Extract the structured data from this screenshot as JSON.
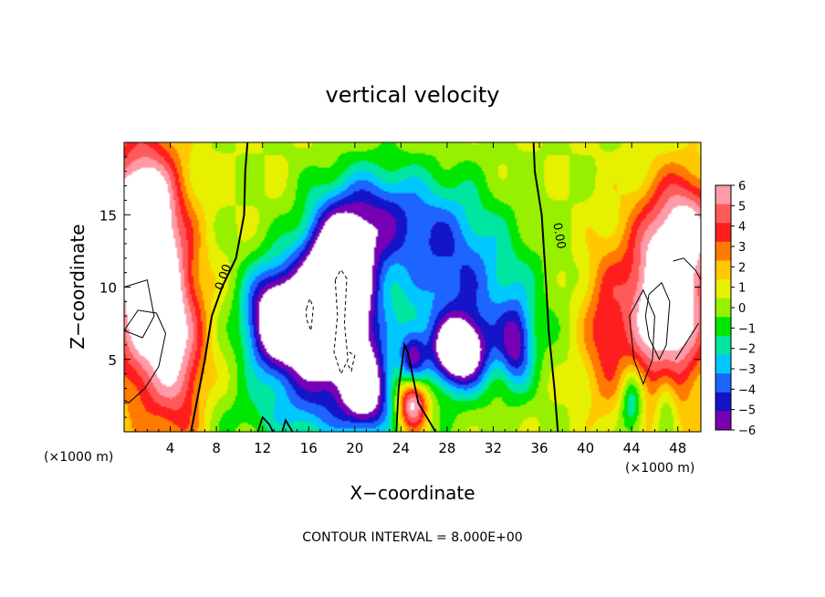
{
  "chart_data": {
    "type": "heatmap",
    "title": "vertical velocity",
    "xlabel": "X−coordinate",
    "ylabel": "Z−coordinate",
    "x_unit": "(×1000 m)",
    "x_unit_right": "(×1000 m)",
    "xlim": [
      0,
      50
    ],
    "ylim": [
      0,
      20
    ],
    "x_ticks": [
      "4",
      "8",
      "12",
      "16",
      "20",
      "24",
      "28",
      "32",
      "36",
      "40",
      "44",
      "48"
    ],
    "x_tick_values": [
      4,
      8,
      12,
      16,
      20,
      24,
      28,
      32,
      36,
      40,
      44,
      48
    ],
    "y_ticks": [
      "5",
      "10",
      "15"
    ],
    "y_tick_values": [
      5,
      10,
      15
    ],
    "colorbar": {
      "labels": [
        "6",
        "5",
        "4",
        "3",
        "2",
        "1",
        "0",
        "−1",
        "−2",
        "−3",
        "−4",
        "−5",
        "−6"
      ],
      "values": [
        6,
        5,
        4,
        3,
        2,
        1,
        0,
        -1,
        -2,
        -3,
        -4,
        -5,
        -6
      ],
      "colors": [
        "#ff9aa8",
        "#ff5a5a",
        "#ff1e1e",
        "#ff7a00",
        "#ffc800",
        "#e6f000",
        "#96f000",
        "#00e600",
        "#00e6a0",
        "#00c8ff",
        "#1e64ff",
        "#1414c8",
        "#7800b4"
      ],
      "out_of_range_color": "#ffffff"
    },
    "contour_label": "0.00",
    "contour_interval_text": "CONTOUR INTERVAL = 8.000E+00",
    "background_w": 0.5,
    "features": [
      {
        "x": 2.0,
        "z": 11.0,
        "sx": 2.2,
        "sz": 6.0,
        "w": 9
      },
      {
        "x": 1.0,
        "z": 15.5,
        "sx": 2.0,
        "sz": 2.5,
        "w": 4
      },
      {
        "x": 5.0,
        "z": 5.0,
        "sx": 1.6,
        "sz": 5.0,
        "w": 4
      },
      {
        "x": 18.5,
        "z": 10.5,
        "sx": 2.2,
        "sz": 3.5,
        "w": -12
      },
      {
        "x": 13.0,
        "z": 8.0,
        "sx": 1.8,
        "sz": 2.5,
        "w": -8
      },
      {
        "x": 17.0,
        "z": 6.0,
        "sx": 3.0,
        "sz": 3.0,
        "w": -7
      },
      {
        "x": 22.0,
        "z": 15.0,
        "sx": 2.5,
        "sz": 2.5,
        "w": -4
      },
      {
        "x": 21.0,
        "z": 3.0,
        "sx": 1.5,
        "sz": 2.0,
        "w": -7
      },
      {
        "x": 29.0,
        "z": 5.5,
        "sx": 1.6,
        "sz": 1.6,
        "w": -9
      },
      {
        "x": 30.0,
        "z": 9.0,
        "sx": 4.0,
        "sz": 4.0,
        "w": -4
      },
      {
        "x": 27.0,
        "z": 14.0,
        "sx": 3.0,
        "sz": 3.0,
        "w": -3
      },
      {
        "x": 34.0,
        "z": 6.0,
        "sx": 1.0,
        "sz": 2.0,
        "w": -5
      },
      {
        "x": 25.0,
        "z": 2.0,
        "sx": 0.9,
        "sz": 1.3,
        "w": 8
      },
      {
        "x": 25.0,
        "z": 5.0,
        "sx": 0.8,
        "sz": 1.5,
        "w": -5
      },
      {
        "x": 47.0,
        "z": 9.0,
        "sx": 2.5,
        "sz": 4.5,
        "w": 9
      },
      {
        "x": 49.0,
        "z": 14.5,
        "sx": 2.0,
        "sz": 2.5,
        "w": 4
      },
      {
        "x": 41.5,
        "z": 7.0,
        "sx": 1.4,
        "sz": 4.0,
        "w": 3
      },
      {
        "x": 44.0,
        "z": 2.0,
        "sx": 0.7,
        "sz": 1.6,
        "w": -4
      },
      {
        "x": 47.0,
        "z": 2.5,
        "sx": 0.7,
        "sz": 1.8,
        "w": -3
      },
      {
        "x": 16.0,
        "z": 1.0,
        "sx": 6.0,
        "sz": 1.5,
        "w": -2
      }
    ],
    "zero_contours": [
      [
        [
          5.8,
          0
        ],
        [
          6.4,
          2.5
        ],
        [
          7.0,
          5
        ],
        [
          7.6,
          8
        ],
        [
          8.5,
          10
        ],
        [
          9.7,
          12
        ],
        [
          10.4,
          15
        ],
        [
          10.5,
          18
        ],
        [
          10.7,
          20
        ]
      ],
      [
        [
          37.6,
          0
        ],
        [
          37.3,
          3
        ],
        [
          36.8,
          7
        ],
        [
          36.6,
          10
        ],
        [
          36.4,
          12.5
        ],
        [
          36.2,
          15
        ],
        [
          35.6,
          18
        ],
        [
          35.5,
          20
        ]
      ]
    ],
    "small_zero_contours": [
      [
        [
          11.6,
          0
        ],
        [
          12.0,
          1.0
        ],
        [
          12.6,
          0.5
        ],
        [
          12.9,
          0
        ]
      ],
      [
        [
          13.7,
          0
        ],
        [
          14.0,
          0.8
        ],
        [
          14.6,
          0
        ]
      ],
      [
        [
          23.6,
          0
        ],
        [
          23.8,
          3
        ],
        [
          24.3,
          6
        ],
        [
          24.6,
          5.5
        ],
        [
          25.5,
          2
        ],
        [
          27.0,
          0
        ]
      ]
    ],
    "solid_contours": [
      [
        [
          0,
          7.0
        ],
        [
          1.2,
          8.4
        ],
        [
          2.8,
          8.2
        ],
        [
          3.6,
          6.8
        ],
        [
          3.0,
          4.5
        ],
        [
          1.8,
          3.0
        ],
        [
          0.4,
          2.0
        ],
        [
          0,
          2.2
        ]
      ],
      [
        [
          0,
          10.0
        ],
        [
          2.0,
          10.5
        ],
        [
          2.6,
          8.0
        ],
        [
          1.6,
          6.5
        ],
        [
          0,
          7.0
        ]
      ],
      [
        [
          45.5,
          9.5
        ],
        [
          46.6,
          10.3
        ],
        [
          47.3,
          9.0
        ],
        [
          47.0,
          6.0
        ],
        [
          46.4,
          5.0
        ],
        [
          45.5,
          6.5
        ],
        [
          45.2,
          8.0
        ],
        [
          45.5,
          9.5
        ]
      ],
      [
        [
          43.8,
          8.0
        ],
        [
          45.0,
          9.8
        ],
        [
          46.0,
          8.0
        ],
        [
          45.8,
          5.0
        ],
        [
          45.0,
          3.3
        ],
        [
          44.2,
          5.0
        ],
        [
          43.8,
          8.0
        ]
      ],
      [
        [
          47.6,
          11.8
        ],
        [
          48.5,
          12.0
        ],
        [
          49.5,
          11.2
        ],
        [
          50,
          10.5
        ]
      ],
      [
        [
          47.8,
          5.0
        ],
        [
          49.0,
          6.5
        ],
        [
          49.8,
          7.5
        ]
      ]
    ],
    "dashed_contours": [
      [
        [
          18.3,
          10.5
        ],
        [
          18.8,
          11.2
        ],
        [
          19.3,
          10.6
        ],
        [
          19.1,
          7.5
        ],
        [
          19.4,
          5.0
        ],
        [
          18.8,
          4.0
        ],
        [
          18.2,
          5.5
        ],
        [
          18.5,
          8.0
        ],
        [
          18.3,
          10.5
        ]
      ],
      [
        [
          15.8,
          8.5
        ],
        [
          16.1,
          9.2
        ],
        [
          16.4,
          8.6
        ],
        [
          16.2,
          7.0
        ],
        [
          15.8,
          7.8
        ],
        [
          15.8,
          8.5
        ]
      ],
      [
        [
          19.5,
          5.5
        ],
        [
          20.0,
          5.3
        ],
        [
          19.7,
          4.2
        ],
        [
          19.3,
          4.8
        ]
      ]
    ]
  }
}
